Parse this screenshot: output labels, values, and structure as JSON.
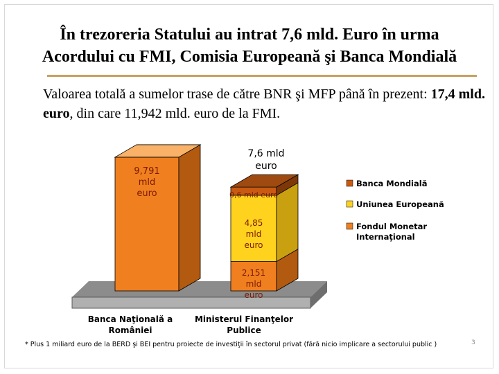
{
  "title": {
    "line1": "În trezoreria Statului au intrat 7,6 mld. Euro în urma",
    "line2": "Acordului cu FMI, Comisia Europeană şi Banca Mondială"
  },
  "subtitle": {
    "part1": "Valoarea totală a sumelor trase de către BNR şi MFP până în prezent: ",
    "bold": "17,4 mld. euro",
    "part2": ", din care 11,942 mld. euro de la FMI."
  },
  "footnote": "* Plus 1 miliard euro de la BERD şi BEI pentru proiecte de investiţii în sectorul privat (fără nicio implicare a sectorului public )",
  "slide_number": "3",
  "chart_data": {
    "type": "bar",
    "stacked": true,
    "categories": [
      "Banca Naţională a României",
      "Ministerul Finanţelor Publice"
    ],
    "series": [
      {
        "name": "Fondul Monetar Internaţional",
        "values": [
          9.791,
          2.151
        ],
        "color": "#f07f1f"
      },
      {
        "name": "Uniunea Europeană",
        "values": [
          0,
          4.85
        ],
        "color": "#ffd21e"
      },
      {
        "name": "Banca Mondială",
        "values": [
          0,
          0.6
        ],
        "color": "#c95a12"
      }
    ],
    "data_labels": {
      "bnr_fmi": [
        "9,791",
        "mld",
        "euro"
      ],
      "mfp_fmi": [
        "2,151",
        "mld",
        "euro"
      ],
      "mfp_ue": [
        "4,85",
        "mld",
        "euro"
      ],
      "mfp_bm": "0,6 mld euro",
      "mfp_total": [
        "7,6 mld",
        "euro"
      ]
    },
    "legend_position": "right",
    "ylim": [
      0,
      10
    ]
  },
  "colors": {
    "floor": "#8c8c8c",
    "floor_edge": "#5a5a5a",
    "side_orange": "#b25a10",
    "side_yellow": "#c9a010",
    "side_brown": "#7e3808",
    "top_orange": "#f9b267",
    "label_text": "#7a1a00"
  }
}
